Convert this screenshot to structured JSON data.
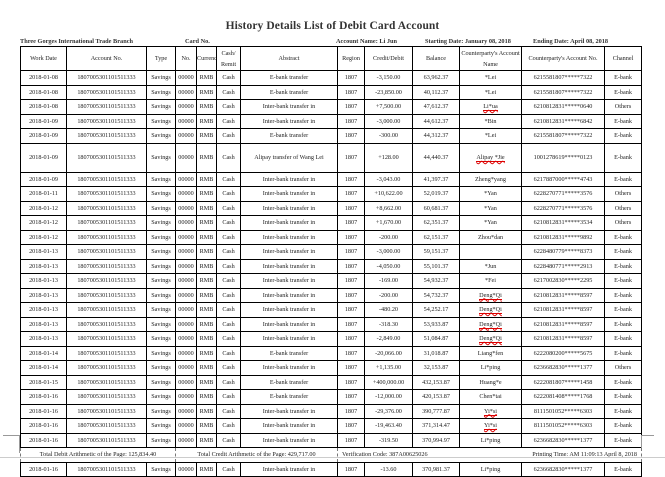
{
  "title": "History Details List of Debit Card Account",
  "info": {
    "branch": "Three Gorges International Trade Branch",
    "card_no": "Card No.",
    "account_name": "Account Name: Li Jun",
    "start_date": "Starting Date: January 08, 2018",
    "end_date": "Ending Date: April 08, 2018"
  },
  "headers": [
    "Work Date",
    "Account No.",
    "Type",
    "No.",
    "Currency",
    "Cash/ Remit",
    "Abstract",
    "Region",
    "Credit/Debit",
    "Balance",
    "Counterparty's Account Name",
    "Counterparty's Account No.",
    "Channel"
  ],
  "rows": [
    [
      "2018-01-08",
      "1807005301101511333",
      "Savings",
      "00000",
      "RMB",
      "Cash",
      "E-bank transfer",
      "1807",
      "-3,150.00",
      "63,962.37",
      "*Lei",
      "6215581807*****7322",
      "E-bank"
    ],
    [
      "2018-01-08",
      "1807005301101511333",
      "Savings",
      "00000",
      "RMB",
      "Cash",
      "E-bank transfer",
      "1807",
      "-23,850.00",
      "40,112.37",
      "*Lei",
      "6215581807*****7322",
      "E-bank"
    ],
    [
      "2018-01-08",
      "1807005301101511333",
      "Savings",
      "00000",
      "RMB",
      "Cash",
      "Inter-bank transfer in",
      "1807",
      "+7,500.00",
      "47,612.37",
      "Li*ua",
      "6210812831*****0640",
      "Others"
    ],
    [
      "2018-01-09",
      "1807005301101511333",
      "Savings",
      "00000",
      "RMB",
      "Cash",
      "Inter-bank transfer in",
      "1807",
      "-3,000.00",
      "44,612.37",
      "*Bin",
      "6210812831*****6842",
      "E-bank"
    ],
    [
      "2018-01-09",
      "1807005301101511333",
      "Savings",
      "00000",
      "RMB",
      "Cash",
      "E-bank transfer",
      "1807",
      "-300.00",
      "44,312.37",
      "*Lei",
      "6215581807*****7322",
      "E-bank"
    ],
    [
      "2018-01-09",
      "1807005301101511333",
      "Savings",
      "00000",
      "RMB",
      "Cash",
      "Alipay transfer of Wang Lei",
      "1807",
      "+128.00",
      "44,440.37",
      "Alipay *Jie",
      "1001278619*****0123",
      "E-bank"
    ],
    [
      "2018-01-09",
      "1807005301101511333",
      "Savings",
      "00000",
      "RMB",
      "Cash",
      "Inter-bank transfer in",
      "1807",
      "-3,043.00",
      "41,397.37",
      "Zheng*yang",
      "6217887000*****4743",
      "E-bank"
    ],
    [
      "2018-01-11",
      "1807005301101511333",
      "Savings",
      "00000",
      "RMB",
      "Cash",
      "Inter-bank transfer in",
      "1807",
      "+10,622.00",
      "52,019.37",
      "*Yan",
      "6228270771*****3576",
      "Others"
    ],
    [
      "2018-01-12",
      "1807005301101511333",
      "Savings",
      "00000",
      "RMB",
      "Cash",
      "Inter-bank transfer in",
      "1807",
      "+8,662.00",
      "60,681.37",
      "*Yan",
      "6228270771*****3576",
      "Others"
    ],
    [
      "2018-01-12",
      "1807005301101511333",
      "Savings",
      "00000",
      "RMB",
      "Cash",
      "Inter-bank transfer in",
      "1807",
      "+1,670.00",
      "62,351.37",
      "*Yan",
      "6210812831*****3534",
      "Others"
    ],
    [
      "2018-01-12",
      "1807005301101511333",
      "Savings",
      "00000",
      "RMB",
      "Cash",
      "Inter-bank transfer in",
      "1807",
      "-200.00",
      "62,151.37",
      "Zhou*dan",
      "6210812831*****9892",
      "E-bank"
    ],
    [
      "2018-01-13",
      "1807005301101511333",
      "Savings",
      "00000",
      "RMB",
      "Cash",
      "Inter-bank transfer in",
      "1807",
      "-3,000.00",
      "59,151.37",
      "",
      "6228480779*****8373",
      "E-bank"
    ],
    [
      "2018-01-13",
      "1807005301101511333",
      "Savings",
      "00000",
      "RMB",
      "Cash",
      "Inter-bank transfer in",
      "1807",
      "-4,050.00",
      "55,101.37",
      "*Jun",
      "6228480771*****2913",
      "E-bank"
    ],
    [
      "2018-01-13",
      "1807005301101511333",
      "Savings",
      "00000",
      "RMB",
      "Cash",
      "Inter-bank transfer in",
      "1807",
      "-169.00",
      "54,932.37",
      "*Fei",
      "6217002830*****2295",
      "E-bank"
    ],
    [
      "2018-01-13",
      "1807005301101511333",
      "Savings",
      "00000",
      "RMB",
      "Cash",
      "Inter-bank transfer in",
      "1807",
      "-200.00",
      "54,732.37",
      "Deng*Qi",
      "6210812831*****8597",
      "E-bank"
    ],
    [
      "2018-01-13",
      "1807005301101511333",
      "Savings",
      "00000",
      "RMB",
      "Cash",
      "Inter-bank transfer in",
      "1807",
      "-480.20",
      "54,252.17",
      "Deng*Qi",
      "6210812831*****8597",
      "E-bank"
    ],
    [
      "2018-01-13",
      "1807005301101511333",
      "Savings",
      "00000",
      "RMB",
      "Cash",
      "Inter-bank transfer in",
      "1807",
      "-318.30",
      "53,933.87",
      "Deng*Qi",
      "6210812831*****8597",
      "E-bank"
    ],
    [
      "2018-01-13",
      "1807005301101511333",
      "Savings",
      "00000",
      "RMB",
      "Cash",
      "Inter-bank transfer in",
      "1807",
      "-2,849.00",
      "51,084.87",
      "Deng*Qi",
      "6210812831*****8597",
      "E-bank"
    ],
    [
      "2018-01-14",
      "1807005301101511333",
      "Savings",
      "00000",
      "RMB",
      "Cash",
      "E-bank transfer",
      "1807",
      "-20,066.00",
      "31,018.87",
      "Liang*fen",
      "6222080200*****5675",
      "E-bank"
    ],
    [
      "2018-01-14",
      "1807005301101511333",
      "Savings",
      "00000",
      "RMB",
      "Cash",
      "Inter-bank transfer in",
      "1807",
      "+1,135.00",
      "32,153.87",
      "Li*ping",
      "6236682830*****1377",
      "Others"
    ],
    [
      "2018-01-15",
      "1807005301101511333",
      "Savings",
      "00000",
      "RMB",
      "Cash",
      "E-bank transfer",
      "1807",
      "+400,000.00",
      "432,153.87",
      "Huang*e",
      "6222081807*****1458",
      "E-bank"
    ],
    [
      "2018-01-16",
      "1807005301101511333",
      "Savings",
      "00000",
      "RMB",
      "Cash",
      "E-bank transfer",
      "1807",
      "-12,000.00",
      "420,153.87",
      "Chen*tai",
      "6222081408*****1768",
      "E-bank"
    ],
    [
      "2018-01-16",
      "1807005301101511333",
      "Savings",
      "00000",
      "RMB",
      "Cash",
      "Inter-bank transfer in",
      "1807",
      "-29,376.00",
      "390,777.87",
      "Yi*si",
      "8111501052*****6303",
      "E-bank"
    ],
    [
      "2018-01-16",
      "1807005301101511333",
      "Savings",
      "00000",
      "RMB",
      "Cash",
      "Inter-bank transfer in",
      "1807",
      "-19,463.40",
      "371,314.47",
      "Yi*si",
      "8111501052*****6303",
      "E-bank"
    ],
    [
      "2018-01-16",
      "1807005301101511333",
      "Savings",
      "00000",
      "RMB",
      "Cash",
      "Inter-bank transfer in",
      "1807",
      "-319.50",
      "370,994.97",
      "Li*ping",
      "6236682830*****1377",
      "E-bank"
    ]
  ],
  "summary": {
    "total_debit": "Total Debit Arithmetic of the Page: 125,834.40",
    "total_credit": "Total Credit Arithmetic of the Page: 429,717.00",
    "verification": "Verification Code: 387A00625026",
    "printing_time": "Printing Time: AM 11:09:13 April 8, 2018"
  },
  "after_rows": [
    [
      "2018-01-16",
      "1807005301101511333",
      "Savings",
      "00000",
      "RMB",
      "Cash",
      "Inter-bank transfer in",
      "1807",
      "-13.60",
      "370,981.37",
      "Li*ping",
      "6236682830*****1377",
      "E-bank"
    ]
  ],
  "spellcheck_flagged": [
    "Li*ua",
    "Alipay *Jie",
    "Deng*Qi",
    "Yi*si"
  ]
}
